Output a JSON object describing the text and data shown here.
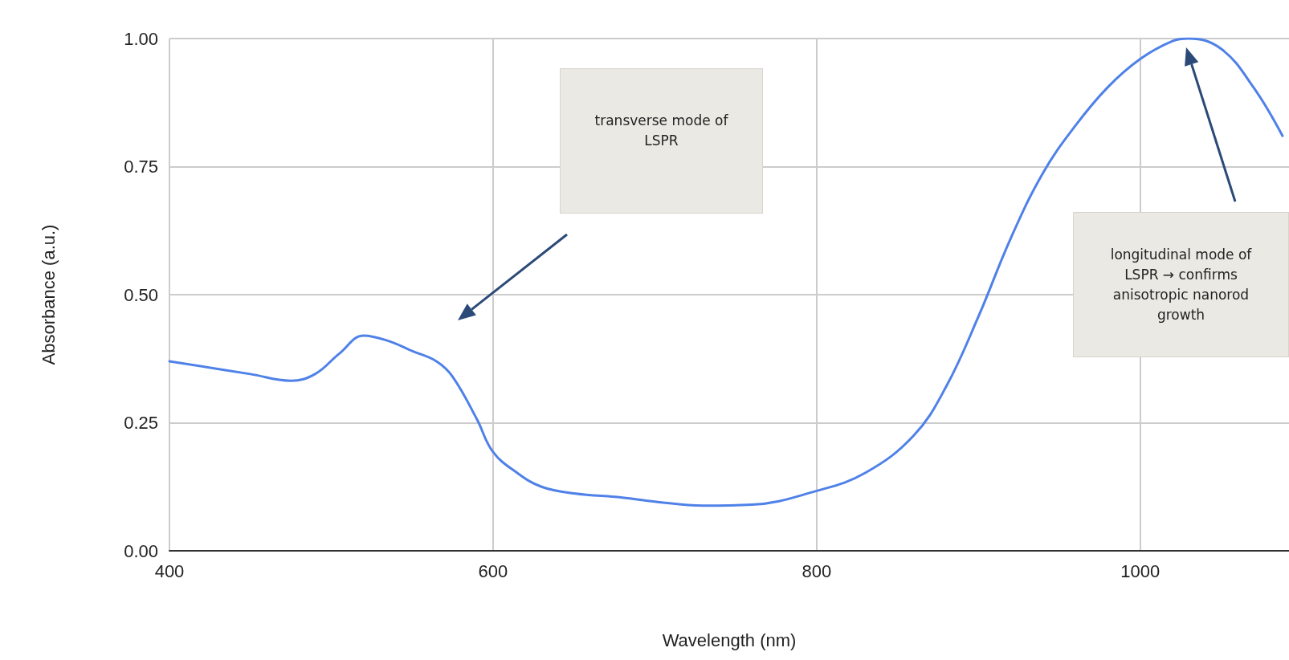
{
  "chart_data": {
    "type": "line",
    "xlabel": "Wavelength (nm)",
    "ylabel": "Absorbance (a.u.)",
    "x": [
      400,
      450,
      475,
      490,
      505,
      520,
      535,
      550,
      565,
      575,
      590,
      600,
      615,
      630,
      650,
      680,
      700,
      730,
      760,
      800,
      830,
      860,
      880,
      900,
      920,
      940,
      960,
      980,
      1000,
      1020,
      1030,
      1050,
      1070,
      1088
    ],
    "values": [
      0.37,
      0.345,
      0.332,
      0.345,
      0.385,
      0.42,
      0.41,
      0.39,
      0.37,
      0.34,
      0.257,
      0.193,
      0.152,
      0.125,
      0.112,
      0.104,
      0.096,
      0.088,
      0.09,
      0.117,
      0.152,
      0.225,
      0.32,
      0.457,
      0.61,
      0.738,
      0.83,
      0.905,
      0.96,
      0.995,
      1.0,
      0.98,
      0.905,
      0.81
    ],
    "color": "#4f81e8",
    "marker": "none",
    "line_style": "solid",
    "grid": true,
    "xlim": [
      400,
      1092
    ],
    "xticks": [
      400,
      600,
      800,
      1000
    ],
    "ylim": [
      0,
      1
    ],
    "yticks": [
      {
        "value": 0,
        "label": "0.00"
      },
      {
        "value": 0.25,
        "label": "0.25"
      },
      {
        "value": 0.5,
        "label": "0.50"
      },
      {
        "value": 0.75,
        "label": "0.75"
      },
      {
        "value": 1,
        "label": "1.00"
      }
    ],
    "annotations": [
      "transverse mode of LSPR",
      "longitudinal mode of LSPR → confirms anisotropic nanorod growth"
    ]
  }
}
